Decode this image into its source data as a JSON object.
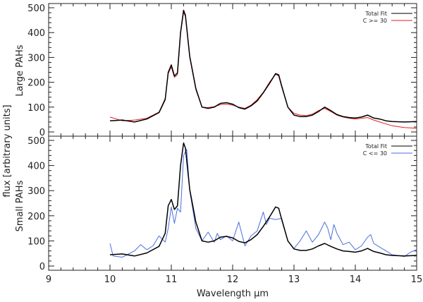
{
  "chart_data": [
    {
      "type": "line",
      "panel": "top",
      "ylabel": "Large PAHs",
      "xlim": [
        9,
        15
      ],
      "ylim": [
        0,
        500
      ],
      "yticks": [
        0,
        100,
        200,
        300,
        400,
        500
      ],
      "legend_position": "top-right",
      "colors": {
        "Total Fit": "#000000",
        "C >= 30": "#e02020"
      },
      "series": [
        {
          "name": "Total Fit",
          "color": "#000000",
          "x": [
            10.0,
            10.2,
            10.4,
            10.6,
            10.8,
            10.9,
            10.95,
            11.0,
            11.05,
            11.1,
            11.15,
            11.2,
            11.23,
            11.3,
            11.4,
            11.5,
            11.6,
            11.7,
            11.8,
            11.9,
            12.0,
            12.1,
            12.2,
            12.3,
            12.4,
            12.5,
            12.6,
            12.7,
            12.75,
            12.8,
            12.9,
            13.0,
            13.1,
            13.2,
            13.3,
            13.4,
            13.5,
            13.6,
            13.7,
            13.8,
            13.9,
            14.0,
            14.1,
            14.2,
            14.3,
            14.4,
            14.5,
            14.6,
            14.8,
            15.0
          ],
          "y": [
            45,
            48,
            40,
            52,
            78,
            130,
            240,
            270,
            225,
            238,
            400,
            490,
            470,
            305,
            175,
            100,
            95,
            100,
            115,
            118,
            112,
            98,
            92,
            105,
            125,
            158,
            195,
            235,
            230,
            185,
            100,
            68,
            62,
            62,
            68,
            82,
            100,
            86,
            70,
            62,
            58,
            56,
            60,
            68,
            56,
            52,
            45,
            42,
            40,
            42
          ]
        },
        {
          "name": "C >= 30",
          "color": "#e02020",
          "x": [
            10.0,
            10.2,
            10.4,
            10.6,
            10.8,
            10.9,
            10.95,
            11.0,
            11.05,
            11.1,
            11.15,
            11.2,
            11.23,
            11.3,
            11.4,
            11.5,
            11.6,
            11.7,
            11.8,
            11.9,
            12.0,
            12.1,
            12.2,
            12.3,
            12.4,
            12.5,
            12.6,
            12.7,
            12.75,
            12.8,
            12.9,
            13.0,
            13.1,
            13.2,
            13.3,
            13.4,
            13.5,
            13.6,
            13.7,
            13.8,
            13.9,
            14.0,
            14.1,
            14.2,
            14.3,
            14.4,
            14.5,
            14.6,
            14.8,
            15.0
          ],
          "y": [
            60,
            45,
            48,
            55,
            80,
            135,
            235,
            262,
            220,
            230,
            395,
            482,
            465,
            300,
            170,
            100,
            98,
            102,
            110,
            112,
            108,
            100,
            95,
            108,
            130,
            160,
            200,
            232,
            225,
            180,
            100,
            75,
            68,
            66,
            72,
            86,
            95,
            82,
            68,
            60,
            55,
            52,
            55,
            58,
            48,
            40,
            32,
            25,
            18,
            15
          ]
        }
      ]
    },
    {
      "type": "line",
      "panel": "bottom",
      "ylabel": "Small PAHs",
      "xlabel": "Wavelength μm",
      "xlim": [
        9,
        15
      ],
      "ylim": [
        0,
        500
      ],
      "xticks": [
        9,
        10,
        11,
        12,
        13,
        14,
        15
      ],
      "yticks": [
        0,
        100,
        200,
        300,
        400,
        500
      ],
      "legend_position": "top-right",
      "colors": {
        "Total Fit": "#000000",
        "C <= 30": "#4a6ee0"
      },
      "series": [
        {
          "name": "Total Fit",
          "color": "#000000",
          "x": [
            10.0,
            10.2,
            10.4,
            10.6,
            10.8,
            10.9,
            10.95,
            11.0,
            11.05,
            11.1,
            11.15,
            11.2,
            11.23,
            11.3,
            11.4,
            11.5,
            11.6,
            11.7,
            11.8,
            11.9,
            12.0,
            12.1,
            12.2,
            12.3,
            12.4,
            12.5,
            12.6,
            12.7,
            12.75,
            12.8,
            12.9,
            13.0,
            13.1,
            13.2,
            13.3,
            13.4,
            13.5,
            13.6,
            13.7,
            13.8,
            13.9,
            14.0,
            14.1,
            14.2,
            14.3,
            14.4,
            14.5,
            14.6,
            14.8,
            15.0
          ],
          "y": [
            45,
            48,
            40,
            52,
            78,
            130,
            240,
            265,
            225,
            240,
            400,
            490,
            470,
            305,
            175,
            100,
            95,
            100,
            115,
            118,
            112,
            98,
            92,
            105,
            125,
            158,
            195,
            235,
            230,
            185,
            100,
            68,
            62,
            62,
            68,
            80,
            90,
            78,
            68,
            60,
            58,
            55,
            60,
            70,
            58,
            52,
            45,
            42,
            40,
            42
          ]
        },
        {
          "name": "C <= 30",
          "color": "#4a6ee0",
          "x": [
            10.0,
            10.05,
            10.2,
            10.4,
            10.5,
            10.6,
            10.7,
            10.8,
            10.9,
            10.95,
            11.0,
            11.05,
            11.1,
            11.15,
            11.2,
            11.25,
            11.3,
            11.4,
            11.5,
            11.6,
            11.7,
            11.75,
            11.8,
            11.9,
            12.0,
            12.1,
            12.2,
            12.3,
            12.4,
            12.5,
            12.55,
            12.6,
            12.7,
            12.8,
            12.9,
            13.0,
            13.1,
            13.2,
            13.3,
            13.4,
            13.5,
            13.55,
            13.6,
            13.65,
            13.7,
            13.8,
            13.9,
            14.0,
            14.1,
            14.2,
            14.25,
            14.3,
            14.4,
            14.5,
            14.6,
            14.8,
            14.9,
            15.0
          ],
          "y": [
            90,
            40,
            35,
            60,
            85,
            65,
            80,
            120,
            95,
            150,
            235,
            170,
            230,
            215,
            440,
            465,
            300,
            150,
            100,
            135,
            95,
            130,
            105,
            120,
            100,
            175,
            80,
            120,
            140,
            215,
            165,
            190,
            185,
            190,
            100,
            70,
            100,
            140,
            95,
            125,
            175,
            150,
            105,
            165,
            130,
            85,
            95,
            65,
            80,
            115,
            125,
            90,
            75,
            60,
            45,
            38,
            55,
            65
          ]
        }
      ]
    }
  ],
  "figure": {
    "shared_ylabel": "flux [arbitrary units]",
    "xlabel": "Wavelength μm",
    "xtick_labels": [
      "9",
      "10",
      "11",
      "12",
      "13",
      "14",
      "15"
    ],
    "ytick_labels": [
      "0",
      "100",
      "200",
      "300",
      "400",
      "500"
    ]
  }
}
